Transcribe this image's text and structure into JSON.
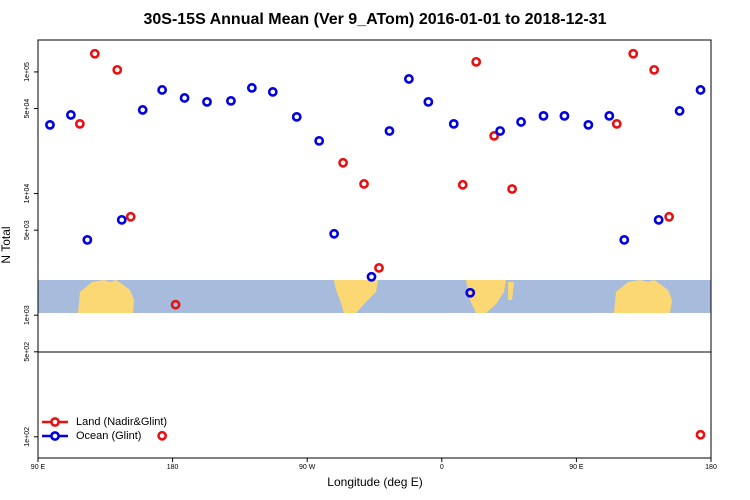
{
  "chart_data": {
    "type": "scatter",
    "title": "30S-15S Annual Mean (Ver 9_ATom)   2016-01-01 to 2018-12-31",
    "x_label": "Longitude (deg E)",
    "y_label": "N Total",
    "log_y": true,
    "legend": "bottom-left",
    "xlim": [
      90,
      540
    ],
    "ylim": [
      67,
      183000
    ],
    "xticks": [
      {
        "value": 90,
        "label": "90 E"
      },
      {
        "value": 180,
        "label": "180"
      },
      {
        "value": 270,
        "label": "90 W"
      },
      {
        "value": 360,
        "label": "0"
      },
      {
        "value": 450,
        "label": "90 E"
      },
      {
        "value": 540,
        "label": "180"
      }
    ],
    "yticks": [
      {
        "value": 100,
        "label": "1e+02"
      },
      {
        "value": 500,
        "label": "5e+02"
      },
      {
        "value": 1000,
        "label": "1e+03"
      },
      {
        "value": 5000,
        "label": "5e+03"
      },
      {
        "value": 10000,
        "label": "1e+04"
      },
      {
        "value": 50000,
        "label": "5e+04"
      },
      {
        "value": 100000,
        "label": "1e+05"
      }
    ],
    "series": [
      {
        "name": "Land (Nadir&Glint)",
        "color": "#e81010",
        "x": [
          118,
          128,
          143,
          152,
          182,
          294,
          308,
          318,
          374,
          383,
          395,
          407,
          477,
          488,
          502,
          512,
          173,
          533
        ],
        "values": [
          37400,
          141000,
          104000,
          6440,
          1220,
          17900,
          12000,
          2450,
          11800,
          121000,
          29800,
          10900,
          37400,
          141000,
          104000,
          6440,
          102,
          104
        ]
      },
      {
        "name": "Ocean (Glint)",
        "color": "#0000e0",
        "x": [
          98,
          112,
          123,
          146,
          160,
          173,
          188,
          203,
          219,
          233,
          247,
          263,
          278,
          288,
          313,
          325,
          338,
          351,
          368,
          379,
          399,
          413,
          428,
          442,
          458,
          472,
          482,
          505,
          519,
          533
        ],
        "values": [
          36700,
          44300,
          4160,
          6080,
          48700,
          71100,
          61100,
          56700,
          57800,
          73900,
          68500,
          42700,
          27100,
          4670,
          2070,
          32700,
          87600,
          56700,
          37400,
          1530,
          32700,
          38800,
          43500,
          43500,
          36700,
          43500,
          4160,
          6080,
          47800,
          71100
        ]
      }
    ]
  }
}
